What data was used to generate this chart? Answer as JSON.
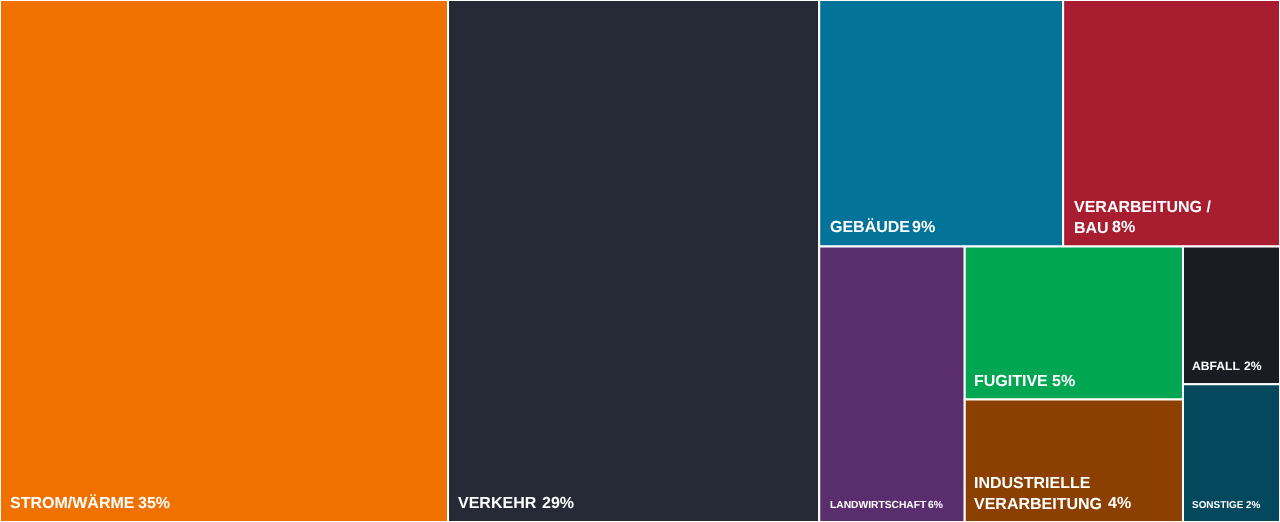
{
  "chart_data": {
    "type": "other",
    "categories": [
      "STROM/WÄRME",
      "VERKEHR",
      "GEBÄUDE",
      "VERARBEITUNG / BAU",
      "LANDWIRTSCHAFT",
      "FUGITIVE",
      "INDUSTRIELLE VERARBEITUNG",
      "ABFALL",
      "SONSTIGE"
    ],
    "values": [
      35,
      29,
      9,
      8,
      6,
      5,
      4,
      2,
      2
    ],
    "value_labels": [
      "35%",
      "29%",
      "9%",
      "8%",
      "6%",
      "5%",
      "4%",
      "2%",
      "2%"
    ],
    "colors": [
      "#f07000",
      "#252a36",
      "#047399",
      "#a81e30",
      "#5a2d6e",
      "#00a651",
      "#8b3f00",
      "#1a1c22",
      "#04485e"
    ]
  }
}
